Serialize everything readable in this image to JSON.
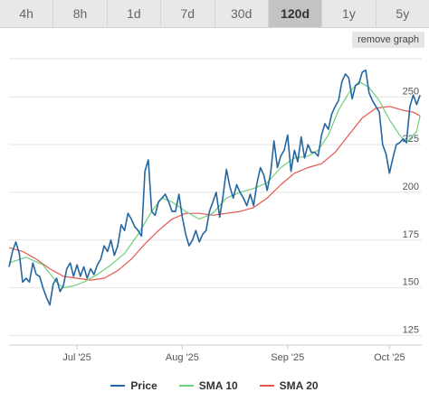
{
  "tabs": [
    {
      "label": "4h",
      "active": false
    },
    {
      "label": "8h",
      "active": false
    },
    {
      "label": "1d",
      "active": false
    },
    {
      "label": "7d",
      "active": false
    },
    {
      "label": "30d",
      "active": false
    },
    {
      "label": "120d",
      "active": true
    },
    {
      "label": "1y",
      "active": false
    },
    {
      "label": "5y",
      "active": false
    }
  ],
  "remove_button": "remove graph",
  "chart_data": {
    "type": "line",
    "title": "",
    "xlabel": "",
    "ylabel": "",
    "ylim": [
      120,
      270
    ],
    "yticks": [
      125,
      150,
      175,
      200,
      225,
      250
    ],
    "x_ticks": [
      {
        "label": "Jul '25",
        "x": 20
      },
      {
        "label": "Aug '25",
        "x": 51
      },
      {
        "label": "Sep '25",
        "x": 82
      },
      {
        "label": "Oct '25",
        "x": 112
      }
    ],
    "xlim": [
      0,
      118
    ],
    "grid": true,
    "legend_position": "bottom",
    "series": [
      {
        "name": "Price",
        "color": "#2366a1",
        "values": [
          [
            0,
            161
          ],
          [
            1,
            169
          ],
          [
            2,
            174
          ],
          [
            3,
            168
          ],
          [
            4,
            153
          ],
          [
            5,
            155
          ],
          [
            6,
            153
          ],
          [
            7,
            163
          ],
          [
            8,
            157
          ],
          [
            9,
            156
          ],
          [
            10,
            150
          ],
          [
            11,
            145
          ],
          [
            12,
            141
          ],
          [
            13,
            152
          ],
          [
            14,
            155
          ],
          [
            15,
            148
          ],
          [
            16,
            151
          ],
          [
            17,
            160
          ],
          [
            18,
            163
          ],
          [
            19,
            156
          ],
          [
            20,
            162
          ],
          [
            21,
            156
          ],
          [
            22,
            161
          ],
          [
            23,
            155
          ],
          [
            24,
            160
          ],
          [
            25,
            157
          ],
          [
            26,
            162
          ],
          [
            27,
            165
          ],
          [
            28,
            172
          ],
          [
            29,
            169
          ],
          [
            30,
            175
          ],
          [
            31,
            167
          ],
          [
            32,
            172
          ],
          [
            33,
            183
          ],
          [
            34,
            180
          ],
          [
            35,
            189
          ],
          [
            36,
            186
          ],
          [
            37,
            182
          ],
          [
            38,
            180
          ],
          [
            39,
            177
          ],
          [
            40,
            211
          ],
          [
            41,
            217
          ],
          [
            42,
            190
          ],
          [
            43,
            188
          ],
          [
            44,
            195
          ],
          [
            45,
            197
          ],
          [
            46,
            199
          ],
          [
            47,
            195
          ],
          [
            48,
            190
          ],
          [
            49,
            190
          ],
          [
            50,
            199
          ],
          [
            51,
            187
          ],
          [
            52,
            178
          ],
          [
            53,
            172
          ],
          [
            54,
            175
          ],
          [
            55,
            180
          ],
          [
            56,
            174
          ],
          [
            57,
            178
          ],
          [
            58,
            180
          ],
          [
            59,
            190
          ],
          [
            60,
            195
          ],
          [
            61,
            200
          ],
          [
            62,
            187
          ],
          [
            63,
            198
          ],
          [
            64,
            212
          ],
          [
            65,
            203
          ],
          [
            66,
            197
          ],
          [
            67,
            204
          ],
          [
            68,
            200
          ],
          [
            69,
            197
          ],
          [
            70,
            193
          ],
          [
            71,
            199
          ],
          [
            72,
            193
          ],
          [
            73,
            205
          ],
          [
            74,
            213
          ],
          [
            75,
            209
          ],
          [
            76,
            201
          ],
          [
            77,
            210
          ],
          [
            78,
            227
          ],
          [
            79,
            213
          ],
          [
            80,
            219
          ],
          [
            81,
            222
          ],
          [
            82,
            230
          ],
          [
            83,
            211
          ],
          [
            84,
            222
          ],
          [
            85,
            216
          ],
          [
            86,
            229
          ],
          [
            87,
            218
          ],
          [
            88,
            225
          ],
          [
            89,
            221
          ],
          [
            90,
            221
          ],
          [
            91,
            219
          ],
          [
            92,
            230
          ],
          [
            93,
            236
          ],
          [
            94,
            233
          ],
          [
            95,
            241
          ],
          [
            96,
            245
          ],
          [
            97,
            248
          ],
          [
            98,
            258
          ],
          [
            99,
            262
          ],
          [
            100,
            260
          ],
          [
            101,
            249
          ],
          [
            102,
            256
          ],
          [
            103,
            257
          ],
          [
            104,
            263
          ],
          [
            105,
            264
          ],
          [
            106,
            252
          ],
          [
            107,
            248
          ],
          [
            108,
            245
          ],
          [
            109,
            242
          ],
          [
            110,
            225
          ],
          [
            111,
            220
          ],
          [
            112,
            210
          ],
          [
            113,
            218
          ],
          [
            114,
            225
          ],
          [
            115,
            226
          ],
          [
            116,
            228
          ],
          [
            117,
            226
          ],
          [
            118,
            245
          ],
          [
            119,
            251
          ],
          [
            120,
            246
          ],
          [
            121,
            251
          ]
        ]
      },
      {
        "name": "SMA 10",
        "color": "#6fcf7d",
        "values": [
          [
            0,
            163
          ],
          [
            5,
            166
          ],
          [
            10,
            162
          ],
          [
            14,
            153
          ],
          [
            16,
            150
          ],
          [
            19,
            151
          ],
          [
            22,
            153
          ],
          [
            26,
            157
          ],
          [
            30,
            162
          ],
          [
            34,
            168
          ],
          [
            38,
            178
          ],
          [
            42,
            190
          ],
          [
            45,
            197
          ],
          [
            48,
            195
          ],
          [
            52,
            190
          ],
          [
            56,
            186
          ],
          [
            60,
            189
          ],
          [
            64,
            197
          ],
          [
            68,
            200
          ],
          [
            72,
            202
          ],
          [
            76,
            205
          ],
          [
            80,
            213
          ],
          [
            84,
            218
          ],
          [
            88,
            219
          ],
          [
            91,
            222
          ],
          [
            94,
            230
          ],
          [
            97,
            243
          ],
          [
            100,
            252
          ],
          [
            103,
            258
          ],
          [
            106,
            255
          ],
          [
            109,
            248
          ],
          [
            112,
            238
          ],
          [
            115,
            230
          ],
          [
            117,
            226
          ],
          [
            120,
            232
          ],
          [
            121,
            240
          ]
        ]
      },
      {
        "name": "SMA 20",
        "color": "#e8544e",
        "values": [
          [
            0,
            171
          ],
          [
            4,
            169
          ],
          [
            8,
            165
          ],
          [
            12,
            160
          ],
          [
            16,
            156
          ],
          [
            20,
            155
          ],
          [
            24,
            154
          ],
          [
            28,
            155
          ],
          [
            32,
            159
          ],
          [
            36,
            165
          ],
          [
            40,
            173
          ],
          [
            44,
            180
          ],
          [
            48,
            186
          ],
          [
            52,
            189
          ],
          [
            56,
            189
          ],
          [
            60,
            188
          ],
          [
            64,
            189
          ],
          [
            68,
            190
          ],
          [
            72,
            192
          ],
          [
            76,
            197
          ],
          [
            80,
            204
          ],
          [
            84,
            210
          ],
          [
            88,
            213
          ],
          [
            92,
            215
          ],
          [
            96,
            221
          ],
          [
            100,
            230
          ],
          [
            104,
            239
          ],
          [
            108,
            244
          ],
          [
            112,
            245
          ],
          [
            116,
            243
          ],
          [
            119,
            242
          ],
          [
            121,
            240
          ]
        ]
      }
    ]
  }
}
